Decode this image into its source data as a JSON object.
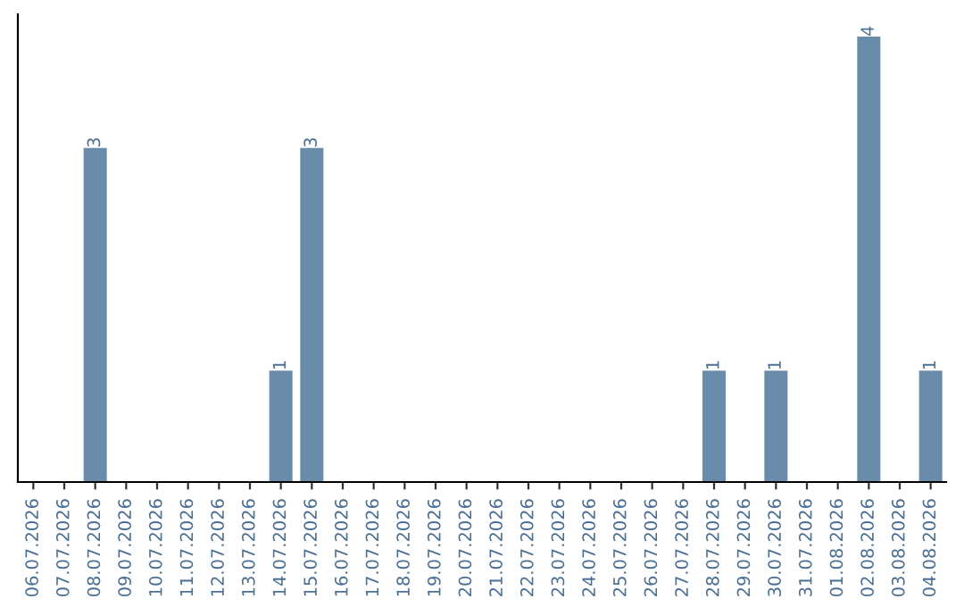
{
  "chart_data": {
    "type": "bar",
    "categories": [
      "06.07.2026",
      "07.07.2026",
      "08.07.2026",
      "09.07.2026",
      "10.07.2026",
      "11.07.2026",
      "12.07.2026",
      "13.07.2026",
      "14.07.2026",
      "15.07.2026",
      "16.07.2026",
      "17.07.2026",
      "18.07.2026",
      "19.07.2026",
      "20.07.2026",
      "21.07.2026",
      "22.07.2026",
      "23.07.2026",
      "24.07.2026",
      "25.07.2026",
      "26.07.2026",
      "27.07.2026",
      "28.07.2026",
      "29.07.2026",
      "30.07.2026",
      "31.07.2026",
      "01.08.2026",
      "02.08.2026",
      "03.08.2026",
      "04.08.2026"
    ],
    "values": [
      0,
      0,
      3,
      0,
      0,
      0,
      0,
      0,
      1,
      3,
      0,
      0,
      0,
      0,
      0,
      0,
      0,
      0,
      0,
      0,
      0,
      0,
      1,
      0,
      1,
      0,
      0,
      4,
      0,
      1
    ],
    "value_labels": [
      null,
      null,
      "3",
      null,
      null,
      null,
      null,
      null,
      "1",
      "3",
      null,
      null,
      null,
      null,
      null,
      null,
      null,
      null,
      null,
      null,
      null,
      null,
      "1",
      null,
      "1",
      null,
      null,
      "4",
      null,
      "1"
    ],
    "color": "#6a8cab",
    "tick_labels": "x",
    "grid": false,
    "legend": false
  }
}
